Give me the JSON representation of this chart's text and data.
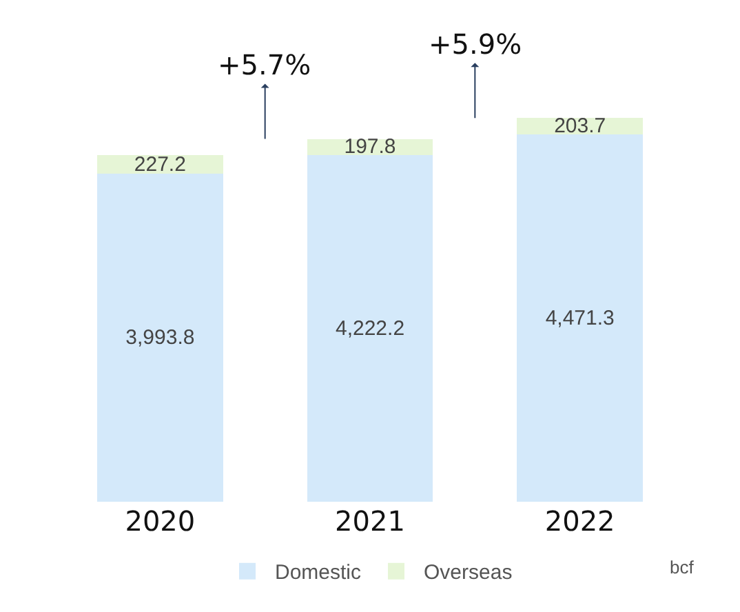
{
  "chart_data": {
    "type": "bar",
    "stacked": true,
    "legend": "bottom",
    "categories": [
      "2020",
      "2021",
      "2022"
    ],
    "series": [
      {
        "name": "Domestic",
        "color": "#d4e9fa",
        "values": [
          3993.8,
          4222.2,
          4471.3
        ],
        "value_labels": [
          "3,993.8",
          "4,222.2",
          "4,471.3"
        ]
      },
      {
        "name": "Overseas",
        "color": "#e6f5d6",
        "values": [
          227.2,
          197.8,
          203.7
        ],
        "value_labels": [
          "227.2",
          "197.8",
          "203.7"
        ]
      }
    ],
    "annotations": [
      "+5.7%",
      "+5.9%",
      "bcf"
    ]
  }
}
